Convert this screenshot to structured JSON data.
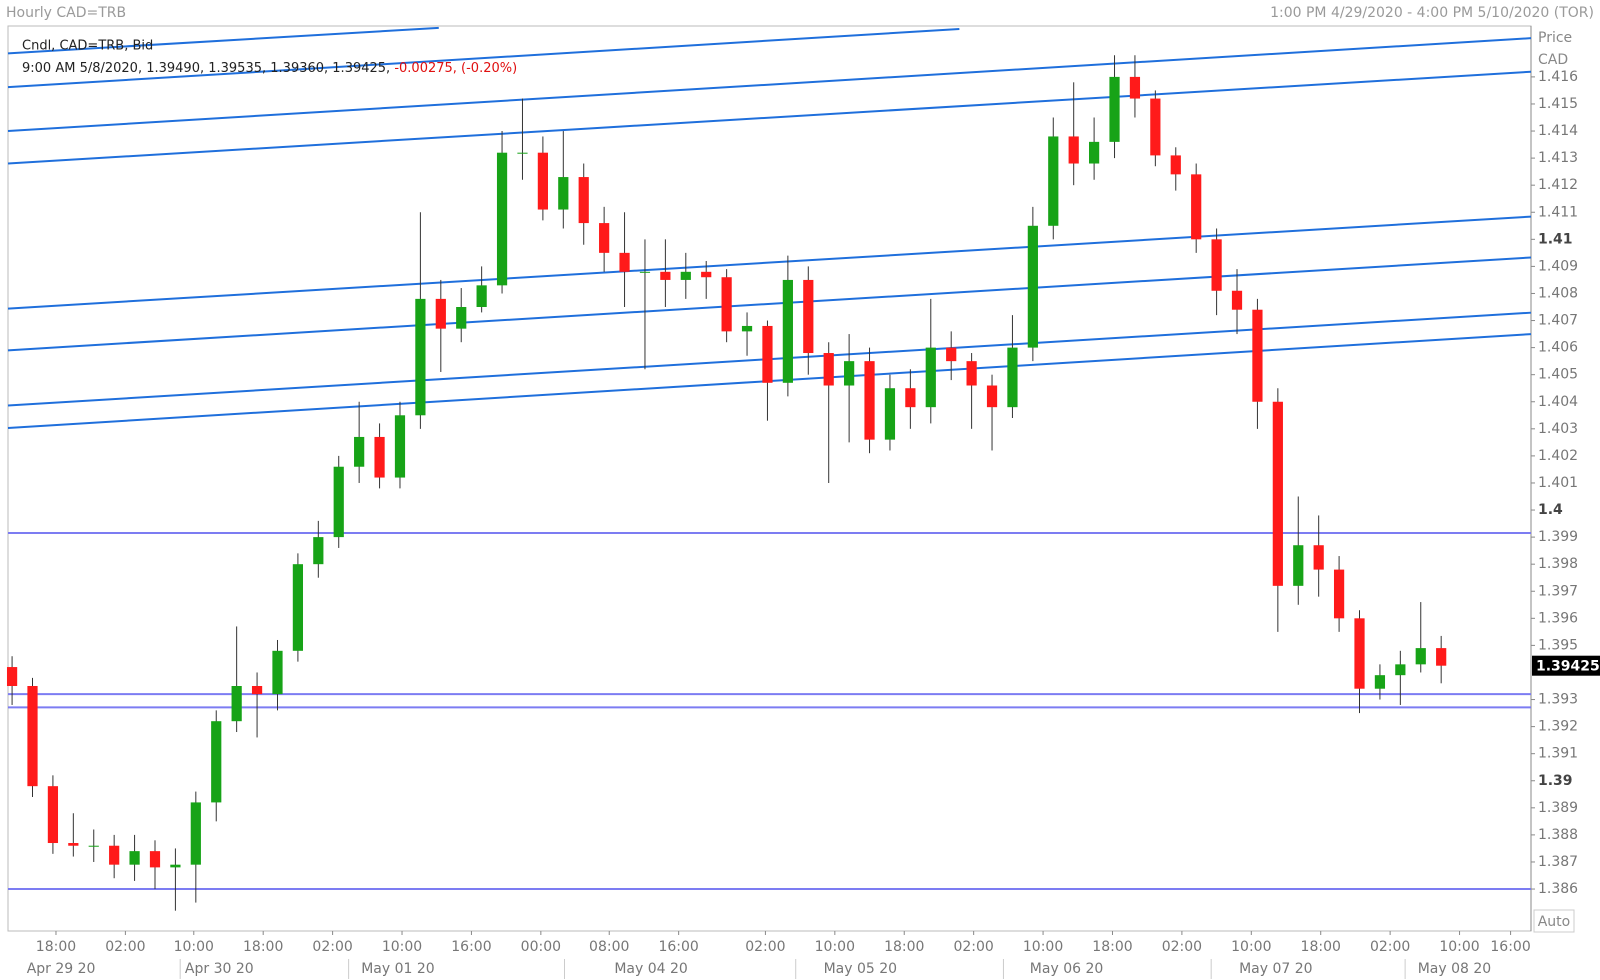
{
  "header": {
    "title": "Hourly CAD=TRB",
    "range": "1:00 PM 4/29/2020 - 4:00 PM 5/10/2020 (TOR)"
  },
  "chart_data": {
    "type": "candlestick",
    "series_label": "Cndl, CAD=TRB, Bid",
    "info": "9:00 AM 5/8/2020, 1.39490, 1.39535, 1.39360, 1.39425,",
    "info_change": "-0.00275, (-0.20%)",
    "axis_title": "Price",
    "axis_unit": "CAD",
    "auto_label": "Auto",
    "last_price": 1.39425,
    "up_color": "#17a317",
    "down_color": "#ff1a1a",
    "xlim": [
      -0.2,
      74.4
    ],
    "ylim": [
      1.38445,
      1.41788
    ],
    "yticks": [
      1.386,
      1.387,
      1.388,
      1.389,
      1.39,
      1.391,
      1.392,
      1.393,
      1.395,
      1.396,
      1.397,
      1.398,
      1.399,
      1.4,
      1.401,
      1.402,
      1.403,
      1.404,
      1.405,
      1.406,
      1.407,
      1.408,
      1.409,
      1.41,
      1.411,
      1.412,
      1.413,
      1.414,
      1.415,
      1.416
    ],
    "xticks": [
      {
        "value": 2.15,
        "label": "18:00"
      },
      {
        "value": 5.55,
        "label": "02:00"
      },
      {
        "value": 8.9,
        "label": "10:00"
      },
      {
        "value": 12.3,
        "label": "18:00"
      },
      {
        "value": 15.7,
        "label": "02:00"
      },
      {
        "value": 19.1,
        "label": "10:00"
      },
      {
        "value": 22.5,
        "label": "16:00"
      },
      {
        "value": 25.9,
        "label": "00:00"
      },
      {
        "value": 29.25,
        "label": "08:00"
      },
      {
        "value": 32.65,
        "label": "16:00"
      },
      {
        "value": 36.9,
        "label": "02:00"
      },
      {
        "value": 40.3,
        "label": "10:00"
      },
      {
        "value": 43.7,
        "label": "18:00"
      },
      {
        "value": 47.1,
        "label": "02:00"
      },
      {
        "value": 50.5,
        "label": "10:00"
      },
      {
        "value": 53.9,
        "label": "18:00"
      },
      {
        "value": 57.3,
        "label": "02:00"
      },
      {
        "value": 60.7,
        "label": "10:00"
      },
      {
        "value": 64.1,
        "label": "18:00"
      },
      {
        "value": 67.5,
        "label": "02:00"
      },
      {
        "value": 70.9,
        "label": "10:00"
      },
      {
        "value": 73.4,
        "label": "16:00"
      }
    ],
    "date_ticks": [
      {
        "value": 2.4,
        "label": "Apr 29 20"
      },
      {
        "value": 10.15,
        "label": "Apr 30 20"
      },
      {
        "value": 18.9,
        "label": "May 01 20"
      },
      {
        "value": 31.3,
        "label": "May 04 20"
      },
      {
        "value": 41.55,
        "label": "May 05 20"
      },
      {
        "value": 51.65,
        "label": "May 06 20"
      },
      {
        "value": 61.9,
        "label": "May 07 20"
      },
      {
        "value": 70.65,
        "label": "May 08 20"
      }
    ],
    "open": [
      1.3942,
      1.3935,
      1.3898,
      1.3877,
      1.3876,
      1.3876,
      1.3869,
      1.3874,
      1.3868,
      1.3869,
      1.3892,
      1.3922,
      1.3935,
      1.3932,
      1.3948,
      1.398,
      1.399,
      1.4016,
      1.4027,
      1.4012,
      1.4035,
      1.4078,
      1.4067,
      1.4075,
      1.4083,
      1.4132,
      1.4132,
      1.4111,
      1.4123,
      1.4106,
      1.4095,
      1.4088,
      1.4088,
      1.4085,
      1.4088,
      1.4086,
      1.4066,
      1.4068,
      1.4047,
      1.4085,
      1.4058,
      1.4046,
      1.4055,
      1.4026,
      1.4045,
      1.4038,
      1.406,
      1.4055,
      1.4046,
      1.4038,
      1.406,
      1.4105,
      1.4138,
      1.4128,
      1.4136,
      1.416,
      1.4152,
      1.4131,
      1.4124,
      1.41,
      1.4081,
      1.4074,
      1.404,
      1.3972,
      1.3987,
      1.3978,
      1.396,
      1.3934,
      1.3939,
      1.3943,
      1.3949
    ],
    "high": [
      1.3946,
      1.3938,
      1.3902,
      1.3888,
      1.3882,
      1.388,
      1.388,
      1.3878,
      1.3875,
      1.3896,
      1.3926,
      1.3957,
      1.394,
      1.3952,
      1.3984,
      1.3996,
      1.402,
      1.404,
      1.4032,
      1.404,
      1.411,
      1.4085,
      1.4082,
      1.409,
      1.414,
      1.4152,
      1.4138,
      1.414,
      1.4128,
      1.4112,
      1.411,
      1.41,
      1.41,
      1.4095,
      1.4092,
      1.4089,
      1.4073,
      1.407,
      1.4094,
      1.409,
      1.4062,
      1.4065,
      1.406,
      1.405,
      1.4052,
      1.4078,
      1.4066,
      1.4058,
      1.405,
      1.4072,
      1.4112,
      1.4145,
      1.4158,
      1.4145,
      1.4168,
      1.4168,
      1.4155,
      1.4134,
      1.4128,
      1.4104,
      1.4089,
      1.4078,
      1.4045,
      1.4005,
      1.3998,
      1.3983,
      1.3963,
      1.3943,
      1.3948,
      1.3966,
      1.39535
    ],
    "low": [
      1.3928,
      1.3894,
      1.3873,
      1.3872,
      1.387,
      1.3864,
      1.3863,
      1.386,
      1.3852,
      1.3855,
      1.3885,
      1.3918,
      1.3916,
      1.3926,
      1.3944,
      1.3975,
      1.3986,
      1.401,
      1.4008,
      1.4008,
      1.403,
      1.4051,
      1.4062,
      1.4073,
      1.408,
      1.4122,
      1.4107,
      1.4104,
      1.4098,
      1.4088,
      1.4075,
      1.4052,
      1.4075,
      1.4078,
      1.4078,
      1.4062,
      1.4057,
      1.4033,
      1.4042,
      1.405,
      1.401,
      1.4025,
      1.4021,
      1.4022,
      1.403,
      1.4032,
      1.4048,
      1.403,
      1.4022,
      1.4034,
      1.4055,
      1.41,
      1.412,
      1.4122,
      1.413,
      1.4145,
      1.4127,
      1.4118,
      1.4095,
      1.4072,
      1.4065,
      1.403,
      1.3955,
      1.3965,
      1.3968,
      1.3955,
      1.3925,
      1.393,
      1.3928,
      1.394,
      1.3936
    ],
    "close": [
      1.3935,
      1.3898,
      1.3877,
      1.3876,
      1.3876,
      1.3869,
      1.3874,
      1.3868,
      1.3869,
      1.3892,
      1.3922,
      1.3935,
      1.3932,
      1.3948,
      1.398,
      1.399,
      1.4016,
      1.4027,
      1.4012,
      1.4035,
      1.4078,
      1.4067,
      1.4075,
      1.4083,
      1.4132,
      1.4132,
      1.4111,
      1.4123,
      1.4106,
      1.4095,
      1.4088,
      1.4088,
      1.4085,
      1.4088,
      1.4086,
      1.4066,
      1.4068,
      1.4047,
      1.4085,
      1.4058,
      1.4046,
      1.4055,
      1.4026,
      1.4045,
      1.4038,
      1.406,
      1.4055,
      1.4046,
      1.4038,
      1.406,
      1.4105,
      1.4138,
      1.4128,
      1.4136,
      1.416,
      1.4152,
      1.4131,
      1.4124,
      1.41,
      1.4081,
      1.4074,
      1.404,
      1.3972,
      1.3987,
      1.3978,
      1.396,
      1.3934,
      1.3939,
      1.3943,
      1.3949,
      1.39425
    ],
    "trend_color": "#1f6fdc",
    "trend_lines": [
      {
        "x": [
          -0.2,
          20.9
        ],
        "y": [
          1.41687,
          1.41781
        ]
      },
      {
        "x": [
          -0.2,
          46.4
        ],
        "y": [
          1.41562,
          1.41777
        ]
      },
      {
        "x": [
          -0.2,
          74.4
        ],
        "y": [
          1.414,
          1.41743
        ]
      },
      {
        "x": [
          -0.2,
          74.4
        ],
        "y": [
          1.4128,
          1.41619
        ]
      },
      {
        "x": [
          -0.2,
          74.4
        ],
        "y": [
          1.40744,
          1.41084
        ]
      },
      {
        "x": [
          -0.2,
          74.4
        ],
        "y": [
          1.4059,
          1.40933
        ]
      },
      {
        "x": [
          -0.2,
          74.4
        ],
        "y": [
          1.40386,
          1.40729
        ]
      },
      {
        "x": [
          -0.2,
          74.4
        ],
        "y": [
          1.40303,
          1.4065
        ]
      }
    ],
    "level_color": "#7c7cf2",
    "levels": [
      1.39915,
      1.3932,
      1.39271,
      1.386
    ]
  }
}
